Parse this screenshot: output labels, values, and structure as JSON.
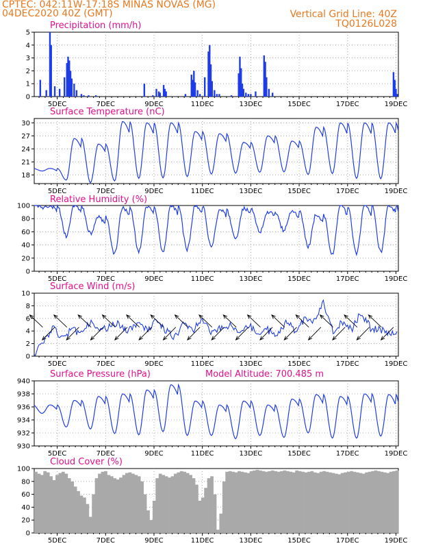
{
  "header": {
    "station": "CPTEC:   042:11W-17:18S   MINAS NOVAS (MG)",
    "date": "04DEC2020 40Z (GMT)",
    "grid_note": "Vertical Grid Line: 40Z",
    "code": "TQ0126L028"
  },
  "colors": {
    "header": "#e8781f",
    "title": "#e0108c",
    "line": "#1f3de6",
    "bar": "#1f3de6",
    "cloud": "#a9a9a9"
  },
  "chart_data": [
    {
      "type": "bar",
      "title": "Precipitation (mm/h)",
      "ylim": [
        0,
        5
      ],
      "yticks": [
        0,
        1,
        2,
        3,
        4,
        5
      ],
      "xticklabels": [
        "5DEC",
        "7DEC",
        "9DEC",
        "11DEC",
        "13DEC",
        "15DEC",
        "17DEC",
        "19DEC"
      ],
      "x": [
        4.3,
        4.55,
        4.7,
        4.75,
        4.9,
        5.1,
        5.3,
        5.4,
        5.45,
        5.5,
        5.55,
        5.6,
        5.7,
        5.8,
        6.0,
        6.1,
        6.3,
        6.6,
        8.6,
        8.95,
        9.1,
        9.2,
        9.25,
        9.4,
        9.45,
        9.5,
        10.3,
        10.55,
        10.6,
        10.65,
        10.7,
        10.8,
        10.9,
        11.1,
        11.25,
        11.3,
        11.35,
        11.4,
        11.5,
        11.6,
        11.7,
        12.2,
        12.5,
        12.55,
        12.6,
        12.65,
        12.7,
        12.8,
        12.9,
        13.0,
        13.2,
        13.55,
        13.6,
        13.65,
        13.75,
        13.9,
        18.9,
        18.95,
        19.0,
        19.05
      ],
      "values": [
        1.3,
        0.5,
        5.0,
        4.0,
        0.8,
        0.6,
        1.5,
        2.6,
        3.1,
        2.8,
        2.0,
        1.4,
        1.0,
        0.5,
        0.2,
        0.1,
        0.1,
        0.1,
        1.0,
        0.1,
        0.6,
        0.4,
        0.3,
        0.9,
        0.6,
        0.4,
        0.2,
        1.7,
        1.3,
        2.0,
        1.1,
        0.5,
        0.2,
        1.5,
        3.5,
        4.0,
        2.5,
        1.2,
        0.5,
        0.2,
        0.2,
        0.1,
        1.8,
        3.1,
        2.2,
        1.0,
        0.6,
        0.3,
        0.2,
        0.2,
        0.4,
        3.2,
        2.7,
        1.5,
        0.6,
        0.3,
        1.9,
        1.3,
        0.6,
        0.2
      ],
      "grid": true
    },
    {
      "type": "line",
      "title": "Surface Temperature (nC)",
      "ylim": [
        16,
        31
      ],
      "yticks": [
        18,
        21,
        24,
        27,
        30
      ],
      "xticklabels": [
        "5DEC",
        "7DEC",
        "9DEC",
        "11DEC",
        "13DEC",
        "15DEC",
        "17DEC",
        "19DEC"
      ],
      "daily_min": [
        18.9,
        16.8,
        16.2,
        16.6,
        17.2,
        17.3,
        17.6,
        18.2,
        18.4,
        18.6,
        18.7,
        18.1,
        18.3,
        17.2,
        17.1,
        17.8
      ],
      "daily_max": [
        19.5,
        26.4,
        25.1,
        30.3,
        30.0,
        30.0,
        28.0,
        27.5,
        25.5,
        27.0,
        25.8,
        29.0,
        30.0,
        30.0,
        30.0,
        27.0
      ],
      "grid": true
    },
    {
      "type": "line",
      "title": "Relative Humidity (%)",
      "ylim": [
        0,
        100
      ],
      "yticks": [
        0,
        20,
        40,
        60,
        80,
        100
      ],
      "xticklabels": [
        "5DEC",
        "7DEC",
        "9DEC",
        "11DEC",
        "13DEC",
        "15DEC",
        "17DEC",
        "19DEC"
      ],
      "daily_min": [
        97,
        54,
        57,
        27,
        30,
        30,
        33,
        36,
        50,
        60,
        62,
        37,
        25,
        28,
        29,
        48
      ],
      "daily_max": [
        100,
        100,
        82,
        97,
        99,
        100,
        100,
        93,
        95,
        90,
        92,
        86,
        100,
        100,
        100,
        85
      ],
      "grid": true
    },
    {
      "type": "line",
      "title": "Surface Wind (m/s)",
      "ylim": [
        0,
        10
      ],
      "yticks": [
        0,
        2,
        4,
        6,
        8,
        10
      ],
      "xticklabels": [
        "5DEC",
        "7DEC",
        "9DEC",
        "11DEC",
        "13DEC",
        "15DEC",
        "17DEC",
        "19DEC"
      ],
      "speed": [
        0.4,
        2.5,
        4.5,
        3.0,
        4.2,
        3.8,
        5.4,
        4.0,
        4.6,
        5.2,
        3.9,
        5.3,
        4.1,
        5.4,
        4.2,
        3.0,
        5.1,
        4.2,
        5.7,
        3.5,
        4.4,
        5.0,
        3.6,
        5.0,
        3.2,
        4.2,
        3.2,
        5.6,
        3.8,
        6.0,
        5.4,
        8.5,
        4.0,
        5.5,
        4.2,
        7.0,
        4.5,
        4.3,
        3.6,
        4.1
      ],
      "grid": true
    },
    {
      "type": "line",
      "title": "Surface Pressure (hPa)",
      "annotation": "Model Altitude: 700.485 m",
      "ylim": [
        930,
        940
      ],
      "yticks": [
        930,
        932,
        934,
        936,
        938,
        940
      ],
      "xticklabels": [
        "5DEC",
        "7DEC",
        "9DEC",
        "11DEC",
        "13DEC",
        "15DEC",
        "17DEC",
        "19DEC"
      ],
      "daily_min": [
        935.0,
        932.9,
        932.6,
        931.9,
        931.7,
        932.2,
        931.6,
        931.6,
        931.1,
        931.6,
        931.3,
        932.0,
        931.2,
        931.2,
        931.5,
        930.2
      ],
      "daily_max": [
        936.3,
        937.0,
        937.6,
        938.0,
        938.6,
        939.4,
        936.9,
        936.3,
        936.9,
        936.3,
        937.2,
        937.9,
        937.6,
        938.0,
        937.9,
        935.0
      ],
      "grid": true
    },
    {
      "type": "area",
      "title": "Cloud Cover (%)",
      "ylim": [
        0,
        100
      ],
      "yticks": [
        0,
        20,
        40,
        60,
        80,
        100
      ],
      "xticklabels": [
        "5DEC",
        "7DEC",
        "9DEC",
        "11DEC",
        "13DEC",
        "15DEC",
        "17DEC",
        "19DEC"
      ],
      "values": [
        95,
        92,
        90,
        96,
        94,
        88,
        82,
        90,
        93,
        95,
        92,
        85,
        80,
        72,
        65,
        58,
        55,
        45,
        25,
        60,
        85,
        92,
        95,
        96,
        90,
        88,
        85,
        83,
        86,
        90,
        93,
        94,
        92,
        90,
        88,
        80,
        60,
        35,
        20,
        50,
        85,
        92,
        90,
        88,
        86,
        88,
        92,
        94,
        96,
        95,
        93,
        90,
        85,
        75,
        50,
        55,
        70,
        85,
        88,
        60,
        5,
        30,
        80,
        95,
        96,
        95,
        94,
        96,
        95,
        94,
        93,
        96,
        97,
        98,
        97,
        96,
        95,
        96,
        97,
        96,
        95,
        96,
        97,
        96,
        95,
        94,
        97,
        96,
        95,
        94,
        95,
        96,
        94,
        93,
        95,
        96,
        95,
        94,
        93,
        92,
        91,
        93,
        94,
        95,
        96,
        95,
        94,
        93,
        92,
        94,
        95,
        96,
        97,
        96,
        95,
        94,
        93,
        95,
        96,
        97
      ],
      "grid": true
    }
  ]
}
